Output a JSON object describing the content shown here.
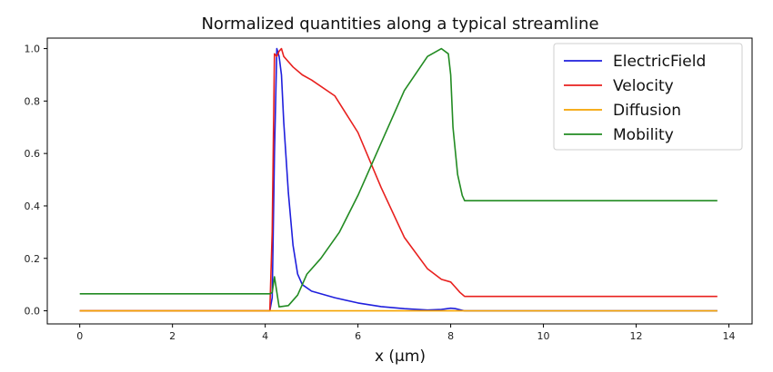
{
  "chart_data": {
    "type": "line",
    "title": "Normalized quantities along a typical streamline",
    "xlabel": "x (μm)",
    "ylabel": "",
    "xlim": [
      -0.7,
      14.5
    ],
    "ylim": [
      -0.05,
      1.04
    ],
    "xticks": [
      "0",
      "2",
      "4",
      "6",
      "8",
      "10",
      "12",
      "14"
    ],
    "yticks": [
      "0.0",
      "0.2",
      "0.4",
      "0.6",
      "0.8",
      "1.0"
    ],
    "grid": false,
    "legend_position": "top-right",
    "series": [
      {
        "name": "ElectricField",
        "color": "#1f1fdd",
        "x": [
          0,
          4.1,
          4.15,
          4.2,
          4.25,
          4.3,
          4.35,
          4.4,
          4.5,
          4.6,
          4.7,
          4.8,
          5.0,
          5.5,
          6.0,
          6.5,
          7.0,
          7.5,
          7.8,
          8.0,
          8.1,
          8.3,
          10,
          12,
          13.75
        ],
        "y": [
          0.0,
          0.0,
          0.05,
          0.6,
          1.0,
          0.97,
          0.9,
          0.72,
          0.45,
          0.25,
          0.14,
          0.1,
          0.075,
          0.05,
          0.03,
          0.016,
          0.008,
          0.003,
          0.005,
          0.01,
          0.008,
          0.0,
          0.0,
          0.0,
          0.0
        ]
      },
      {
        "name": "Velocity",
        "color": "#e8201e",
        "x": [
          0,
          4.1,
          4.15,
          4.2,
          4.25,
          4.3,
          4.35,
          4.4,
          4.5,
          4.6,
          4.8,
          5.0,
          5.5,
          6.0,
          6.5,
          7.0,
          7.5,
          7.8,
          8.0,
          8.1,
          8.2,
          8.3,
          10,
          12,
          13.75
        ],
        "y": [
          0.0,
          0.0,
          0.3,
          0.98,
          0.97,
          0.99,
          1.0,
          0.97,
          0.95,
          0.93,
          0.9,
          0.88,
          0.82,
          0.68,
          0.47,
          0.28,
          0.16,
          0.12,
          0.11,
          0.09,
          0.07,
          0.055,
          0.055,
          0.055,
          0.055
        ]
      },
      {
        "name": "Diffusion",
        "color": "#f5a300",
        "x": [
          0,
          4.1,
          4.2,
          13.75
        ],
        "y": [
          0.0,
          0.0,
          0.0,
          0.0
        ]
      },
      {
        "name": "Mobility",
        "color": "#228b22",
        "x": [
          0,
          4.1,
          4.15,
          4.2,
          4.3,
          4.5,
          4.7,
          4.9,
          5.2,
          5.6,
          6.0,
          6.5,
          7.0,
          7.5,
          7.8,
          7.95,
          8.0,
          8.05,
          8.15,
          8.25,
          8.3,
          10,
          12,
          13.75
        ],
        "y": [
          0.065,
          0.065,
          0.07,
          0.13,
          0.015,
          0.02,
          0.06,
          0.14,
          0.2,
          0.3,
          0.44,
          0.64,
          0.84,
          0.97,
          1.0,
          0.98,
          0.9,
          0.7,
          0.52,
          0.44,
          0.42,
          0.42,
          0.42,
          0.42
        ]
      }
    ]
  }
}
